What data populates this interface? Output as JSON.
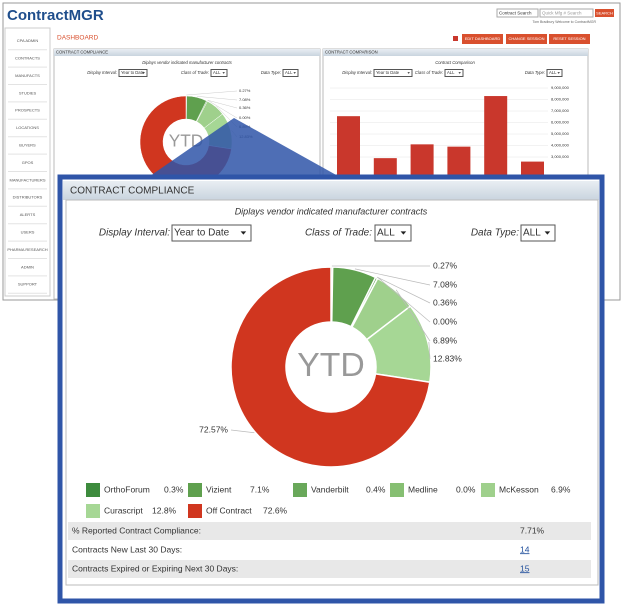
{
  "app": {
    "logo": "ContractMGR",
    "search_select": "Contract Search",
    "search_placeholder": "Quick Mfg # Search",
    "search_button": "SEARCH",
    "welcome": "Tom Bradbury  Welcome to ContractMGR",
    "nav": [
      "CPA ADMIN",
      "CONTRACTS",
      "MANUFACTS",
      "STUDIES",
      "PROSPECTS",
      "LOCATIONS",
      "BUYERS",
      "GPOS",
      "MANUFACTURERS",
      "DISTRIBUTORS",
      "ALERTS",
      "USERS",
      "PHARMA RESEARCH",
      "ADMIN",
      "SUPPORT"
    ],
    "page_title": "DASHBOARD",
    "buttons": [
      "EDIT DASHBOARD",
      "CHANGE SESSION",
      "RESET SESSION"
    ]
  },
  "chart_data": [
    {
      "type": "pie",
      "title": "CONTRACT COMPLIANCE",
      "subtitle": "Diplays vendor indicated manufacturer contracts",
      "center_label": "YTD",
      "filters": [
        {
          "label": "Display Interval:",
          "value": "Year to Date"
        },
        {
          "label": "Class of Trade:",
          "value": "ALL"
        },
        {
          "label": "Data Type:",
          "value": "ALL"
        }
      ],
      "categories": [
        "OrthoForum",
        "Vizient",
        "Vanderbilt",
        "Medline",
        "McKesson",
        "Curascript",
        "Off Contract"
      ],
      "values": [
        0.27,
        7.08,
        0.36,
        0.0,
        6.89,
        12.83,
        72.57
      ],
      "value_labels": [
        "0.27%",
        "7.08%",
        "0.36%",
        "0.00%",
        "6.89%",
        "12.83%",
        "72.57%"
      ],
      "legend_labels": [
        "0.3%",
        "7.1%",
        "0.4%",
        "0.0%",
        "6.9%",
        "12.8%",
        "72.6%"
      ],
      "colors": [
        "#3d8b3d",
        "#5fa04e",
        "#69a85a",
        "#86bf72",
        "#9fd08c",
        "#a6d795",
        "#d0361f"
      ]
    },
    {
      "type": "bar",
      "title": "CONTRACT COMPARISON",
      "subtitle": "Contract Comparison",
      "filters": [
        {
          "label": "Display Interval:",
          "value": "Year to Date"
        },
        {
          "label": "Class of Trade:",
          "value": "ALL"
        },
        {
          "label": "Data Type:",
          "value": "ALL"
        }
      ],
      "categories": [
        null,
        null,
        null,
        null,
        null,
        null
      ],
      "values": [
        6550000,
        2900000,
        4100000,
        3900000,
        8300000,
        2600000
      ],
      "color": "#c9372c",
      "ylim": [
        0,
        9400000
      ],
      "yticks": [
        {
          "value": 3000000,
          "label": "3,000,000"
        },
        {
          "value": 4000000,
          "label": "4,000,000"
        },
        {
          "value": 5000000,
          "label": "5,000,000"
        },
        {
          "value": 6000000,
          "label": "6,000,000"
        },
        {
          "value": 7000000,
          "label": "7,000,000"
        },
        {
          "value": 8000000,
          "label": "8,000,000"
        },
        {
          "value": 9000000,
          "label": "9,000,000"
        }
      ]
    }
  ],
  "stats": [
    {
      "label": "% Reported Contract Compliance:",
      "value": "7.71%"
    },
    {
      "label": "Contracts New Last 30 Days:",
      "value": "14"
    },
    {
      "label": "Contracts Expired or Expiring Next 30 Days:",
      "value": "15"
    }
  ]
}
